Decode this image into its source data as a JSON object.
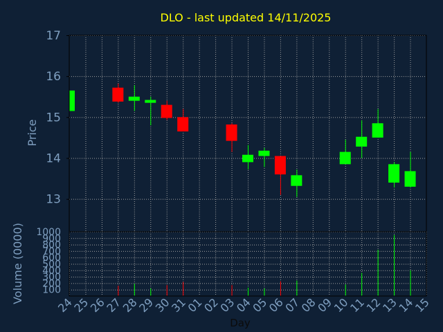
{
  "chart_data": {
    "type": "candlestick",
    "title": "DLO - last updated 14/11/2025",
    "xlabel": "Day",
    "colors": {
      "background": "#0f2035",
      "plot_bg": "#0f2035",
      "frame": "#000000",
      "grid": "#a0a0a0",
      "text": "#7f9fc0",
      "title": "#ffff00",
      "up": "#00ff00",
      "down": "#ff0000"
    },
    "x_ticks": [
      "24",
      "25",
      "26",
      "27",
      "28",
      "29",
      "30",
      "31",
      "01",
      "02",
      "03",
      "04",
      "05",
      "06",
      "07",
      "08",
      "09",
      "10",
      "11",
      "12",
      "13",
      "14",
      "15"
    ],
    "price_panel": {
      "ylabel": "Price",
      "ylim": [
        12.2,
        17
      ],
      "yticks": [
        13,
        14,
        15,
        16,
        17
      ],
      "candles": [
        {
          "x": "24",
          "open": 15.15,
          "high": 15.65,
          "low": 15.15,
          "close": 15.65
        },
        {
          "x": "27",
          "open": 15.72,
          "high": 15.82,
          "low": 15.35,
          "close": 15.38
        },
        {
          "x": "28",
          "open": 15.4,
          "high": 15.78,
          "low": 15.15,
          "close": 15.5
        },
        {
          "x": "29",
          "open": 15.35,
          "high": 15.5,
          "low": 14.8,
          "close": 15.42
        },
        {
          "x": "30",
          "open": 15.3,
          "high": 15.4,
          "low": 14.93,
          "close": 14.98
        },
        {
          "x": "31",
          "open": 15.0,
          "high": 15.2,
          "low": 14.65,
          "close": 14.65
        },
        {
          "x": "03",
          "open": 14.82,
          "high": 14.85,
          "low": 14.15,
          "close": 14.42
        },
        {
          "x": "04",
          "open": 13.9,
          "high": 14.32,
          "low": 13.72,
          "close": 14.08
        },
        {
          "x": "05",
          "open": 14.05,
          "high": 14.25,
          "low": 13.78,
          "close": 14.18
        },
        {
          "x": "06",
          "open": 14.05,
          "high": 14.05,
          "low": 13.1,
          "close": 13.6
        },
        {
          "x": "07",
          "open": 13.32,
          "high": 13.72,
          "low": 13.05,
          "close": 13.58
        },
        {
          "x": "10",
          "open": 13.85,
          "high": 14.45,
          "low": 13.85,
          "close": 14.15
        },
        {
          "x": "11",
          "open": 14.28,
          "high": 14.92,
          "low": 14.0,
          "close": 14.52
        },
        {
          "x": "12",
          "open": 14.5,
          "high": 15.2,
          "low": 14.5,
          "close": 14.85
        },
        {
          "x": "13",
          "open": 13.4,
          "high": 13.9,
          "low": 13.28,
          "close": 13.85
        },
        {
          "x": "14",
          "open": 13.3,
          "high": 14.15,
          "low": 13.28,
          "close": 13.68
        }
      ]
    },
    "volume_panel": {
      "ylabel": "Volume (0000)",
      "ylim": [
        0,
        1000
      ],
      "yticks": [
        100,
        200,
        300,
        400,
        500,
        600,
        700,
        800,
        900,
        1000
      ],
      "bars": [
        {
          "x": "27",
          "value": 160,
          "direction": "down"
        },
        {
          "x": "28",
          "value": 190,
          "direction": "up"
        },
        {
          "x": "29",
          "value": 120,
          "direction": "up"
        },
        {
          "x": "30",
          "value": 170,
          "direction": "down"
        },
        {
          "x": "31",
          "value": 220,
          "direction": "down"
        },
        {
          "x": "03",
          "value": 170,
          "direction": "down"
        },
        {
          "x": "04",
          "value": 130,
          "direction": "up"
        },
        {
          "x": "05",
          "value": 120,
          "direction": "up"
        },
        {
          "x": "06",
          "value": 230,
          "direction": "down"
        },
        {
          "x": "07",
          "value": 240,
          "direction": "up"
        },
        {
          "x": "10",
          "value": 180,
          "direction": "up"
        },
        {
          "x": "11",
          "value": 360,
          "direction": "up"
        },
        {
          "x": "12",
          "value": 720,
          "direction": "up"
        },
        {
          "x": "13",
          "value": 950,
          "direction": "up"
        },
        {
          "x": "14",
          "value": 400,
          "direction": "up"
        }
      ]
    }
  }
}
